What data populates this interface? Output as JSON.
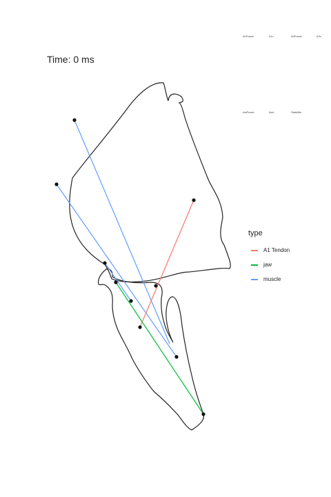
{
  "title": "Time: 0 ms",
  "top_labels": [
    "A1Power",
    "A1v",
    "A3Power",
    "A3v",
    "AwPower",
    "Awv",
    "Stabilitie"
  ],
  "legend": {
    "title": "type",
    "items": [
      {
        "label": "A1 Tendon",
        "color": "#f8766d"
      },
      {
        "label": "jaw",
        "color": "#00ba38"
      },
      {
        "label": "muscle",
        "color": "#619cff"
      }
    ]
  },
  "colors": {
    "outline": "#222222",
    "points": "#111111"
  }
}
